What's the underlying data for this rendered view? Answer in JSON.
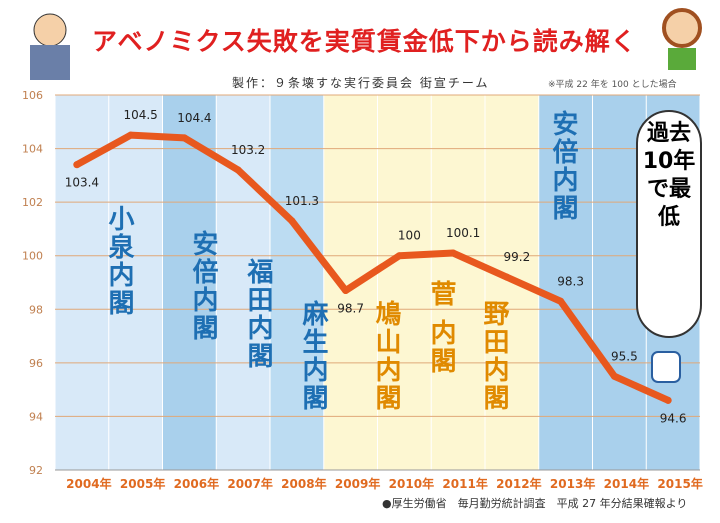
{
  "header": {
    "title": "アベノミクス失敗を実質賃金低下から読み解く",
    "credit": "製作：９条壊すな実行委員会 街宣チーム",
    "note": "※平成 22 年を 100 とした場合"
  },
  "footer": {
    "source": "●厚生労働省　毎月勤労統計調査　平成 27 年分結果確報より"
  },
  "cabinets": [
    {
      "label": "小泉内閣",
      "years": [
        "2004",
        "2005"
      ],
      "color": "#1e6fb3"
    },
    {
      "label": "安倍内閣",
      "years": [
        "2006"
      ],
      "color": "#1e6fb3"
    },
    {
      "label": "福田内閣",
      "years": [
        "2007"
      ],
      "color": "#1e6fb3"
    },
    {
      "label": "麻生内閣",
      "years": [
        "2008"
      ],
      "color": "#1e6fb3"
    },
    {
      "label": "鳩山内閣",
      "years": [
        "2009"
      ],
      "color": "#e08a00"
    },
    {
      "label": "菅 内閣",
      "years": [
        "2010"
      ],
      "color": "#e08a00"
    },
    {
      "label": "野田内閣",
      "years": [
        "2011",
        "2012"
      ],
      "color": "#e08a00"
    },
    {
      "label": "安倍内閣",
      "years": [
        "2013",
        "2014",
        "2015"
      ],
      "color": "#1e6fb3"
    }
  ],
  "callout": {
    "text": "過去10年で最低"
  },
  "chart_data": {
    "type": "line",
    "title": "アベノミクス失敗を実質賃金低下から読み解く",
    "categories": [
      "2004年",
      "2005年",
      "2006年",
      "2007年",
      "2008年",
      "2009年",
      "2010年",
      "2011年",
      "2012年",
      "2013年",
      "2014年",
      "2015年"
    ],
    "values": [
      103.4,
      104.5,
      104.4,
      103.2,
      101.3,
      98.7,
      100,
      100.1,
      99.2,
      98.3,
      95.5,
      94.6
    ],
    "data_labels": [
      "103.4",
      "104.5",
      "104.4",
      "103.2",
      "101.3",
      "98.7",
      "100",
      "100.1",
      "99.2",
      "98.3",
      "95.5",
      "94.6"
    ],
    "ylim": [
      92,
      106
    ],
    "yticks": [
      "92",
      "94",
      "96",
      "98",
      "100",
      "102",
      "104",
      "106"
    ],
    "line_color": "#e8581e",
    "grid": true
  }
}
